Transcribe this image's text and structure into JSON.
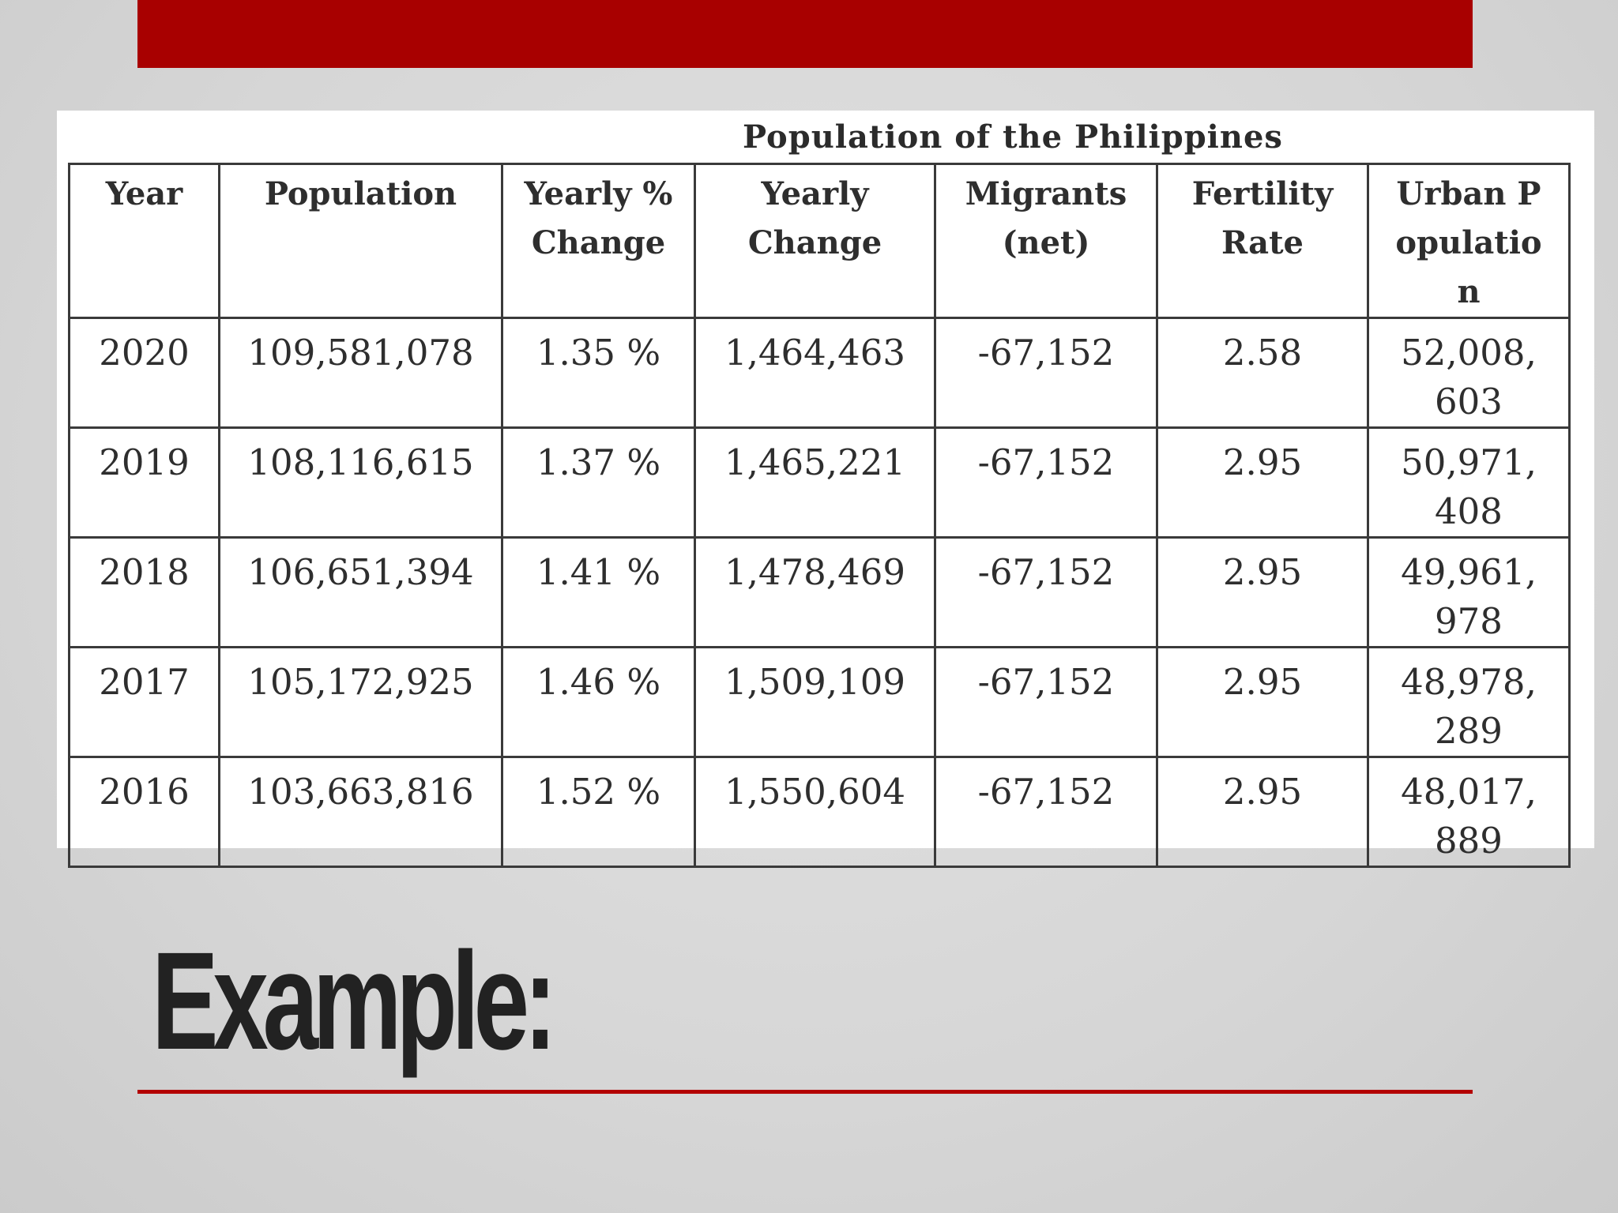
{
  "slide": {
    "heading": "Example:",
    "accent_color": "#a80000"
  },
  "table": {
    "title": "Population of the Philippines",
    "headers": [
      "Year",
      "Population",
      "Yearly % Change",
      "Yearly Change",
      "Migrants (net)",
      "Fertility Rate",
      "Urban Population"
    ],
    "rows": [
      [
        "2020",
        "109,581,078",
        "1.35 %",
        "1,464,463",
        "-67,152",
        "2.58",
        "52,008,603"
      ],
      [
        "2019",
        "108,116,615",
        "1.37 %",
        "1,465,221",
        "-67,152",
        "2.95",
        "50,971,408"
      ],
      [
        "2018",
        "106,651,394",
        "1.41 %",
        "1,478,469",
        "-67,152",
        "2.95",
        "49,961,978"
      ],
      [
        "2017",
        "105,172,925",
        "1.46 %",
        "1,509,109",
        "-67,152",
        "2.95",
        "48,978,289"
      ],
      [
        "2016",
        "103,663,816",
        "1.52 %",
        "1,550,604",
        "-67,152",
        "2.95",
        "48,017,889"
      ]
    ]
  }
}
